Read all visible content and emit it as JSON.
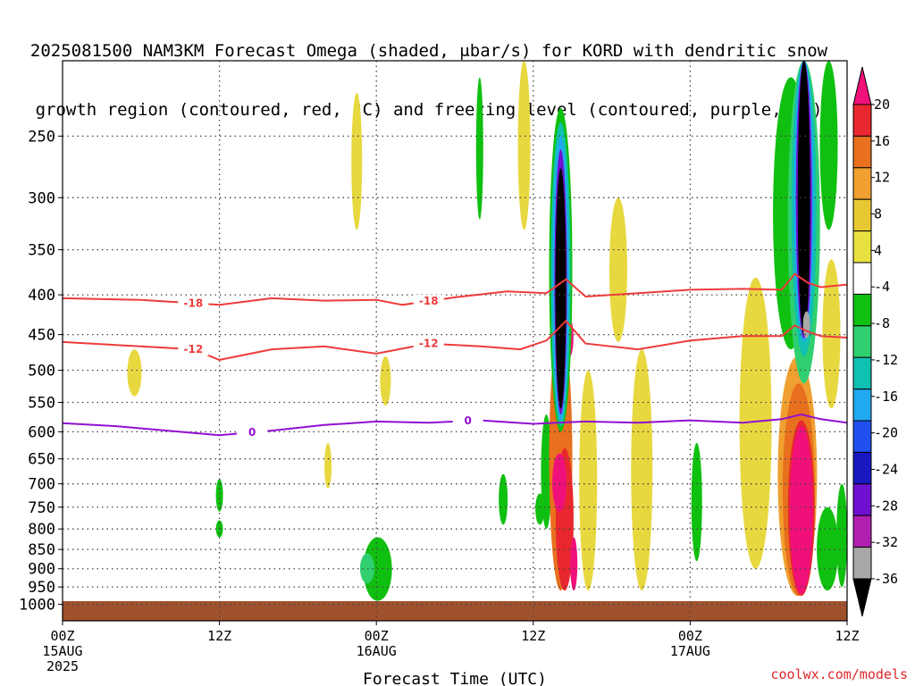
{
  "title": {
    "line1": "2025081500 NAM3KM Forecast Omega (shaded, μbar/s) for KORD with dendritic snow",
    "line2": "growth region (contoured, red, °C) and freezing level (contoured, purple, °C)"
  },
  "credit": "coolwx.com/models",
  "chart_data": {
    "type": "heatmap",
    "title": "2025081500 NAM3KM Forecast Omega (shaded, μbar/s) for KORD with dendritic snow growth region (contoured, red, °C) and freezing level (contoured, purple, °C)",
    "xlabel": "Forecast Time (UTC)",
    "ylabel": "",
    "x_range_hours": [
      0,
      60
    ],
    "y_range_hPa": [
      1050,
      200
    ],
    "y_scale": "log-pressure",
    "x_ticks": [
      {
        "h": 0,
        "label": "00Z",
        "sub": "15AUG",
        "sub2": "2025"
      },
      {
        "h": 12,
        "label": "12Z",
        "sub": "",
        "sub2": ""
      },
      {
        "h": 24,
        "label": "00Z",
        "sub": "16AUG",
        "sub2": ""
      },
      {
        "h": 36,
        "label": "12Z",
        "sub": "",
        "sub2": ""
      },
      {
        "h": 48,
        "label": "00Z",
        "sub": "17AUG",
        "sub2": ""
      },
      {
        "h": 60,
        "label": "12Z",
        "sub": "",
        "sub2": ""
      }
    ],
    "y_ticks": [
      250,
      300,
      350,
      400,
      450,
      500,
      550,
      600,
      650,
      700,
      750,
      800,
      850,
      900,
      950,
      1000
    ],
    "grid": true,
    "colorbar": {
      "labels": [
        "20",
        "16",
        "12",
        "8",
        "4",
        "-4",
        "-8",
        "-12",
        "-16",
        "-20",
        "-24",
        "-28",
        "-32",
        "-36"
      ],
      "colors": [
        "#f0107a",
        "#e8282e",
        "#e8701e",
        "#f0a030",
        "#e8c832",
        "#e8e040",
        "#ffffff",
        "#10c010",
        "#30d070",
        "#10c0b0",
        "#20a8f0",
        "#2050f0",
        "#1818c0",
        "#7010d0",
        "#b020b0",
        "#a8a8a8",
        "#000000"
      ]
    },
    "contours": [
      {
        "name": "-18",
        "color": "#ee3b3b",
        "points": [
          [
            0,
            404
          ],
          [
            6,
            406
          ],
          [
            12,
            412
          ],
          [
            16,
            404
          ],
          [
            20,
            407
          ],
          [
            24,
            406
          ],
          [
            26,
            412
          ],
          [
            30,
            403
          ],
          [
            34,
            396
          ],
          [
            37,
            398
          ],
          [
            38.5,
            382
          ],
          [
            40,
            402
          ],
          [
            44,
            398
          ],
          [
            48,
            394
          ],
          [
            52,
            393
          ],
          [
            55,
            394
          ],
          [
            56,
            376
          ],
          [
            57,
            386
          ],
          [
            58,
            391
          ],
          [
            60,
            388
          ]
        ]
      },
      {
        "name": "-12",
        "color": "#ee3b3b",
        "points": [
          [
            0,
            460
          ],
          [
            6,
            466
          ],
          [
            10,
            470
          ],
          [
            12,
            485
          ],
          [
            16,
            470
          ],
          [
            20,
            466
          ],
          [
            24,
            476
          ],
          [
            28,
            462
          ],
          [
            32,
            466
          ],
          [
            35,
            470
          ],
          [
            37,
            458
          ],
          [
            38.5,
            432
          ],
          [
            40,
            462
          ],
          [
            44,
            470
          ],
          [
            48,
            458
          ],
          [
            52,
            452
          ],
          [
            55,
            452
          ],
          [
            56,
            438
          ],
          [
            57,
            446
          ],
          [
            58,
            452
          ],
          [
            60,
            454
          ]
        ]
      },
      {
        "name": "0",
        "color": "#9010d0",
        "points": [
          [
            0,
            585
          ],
          [
            4,
            590
          ],
          [
            8,
            598
          ],
          [
            12,
            606
          ],
          [
            16,
            598
          ],
          [
            20,
            588
          ],
          [
            24,
            582
          ],
          [
            28,
            584
          ],
          [
            32,
            580
          ],
          [
            36,
            586
          ],
          [
            40,
            582
          ],
          [
            44,
            584
          ],
          [
            48,
            580
          ],
          [
            52,
            584
          ],
          [
            55,
            578
          ],
          [
            56.5,
            570
          ],
          [
            58,
            578
          ],
          [
            60,
            584
          ]
        ]
      }
    ]
  }
}
